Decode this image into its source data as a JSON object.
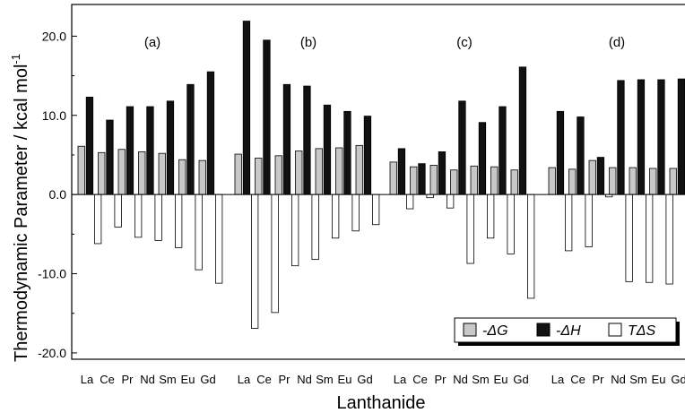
{
  "chart_data": {
    "type": "bar",
    "title": "",
    "xlabel": "Lanthanide",
    "ylabel": "Thermodynamic Parameter / kcal mol",
    "ylabel_superscript": "-1",
    "ylim": [
      -20.8,
      24.0
    ],
    "yticks": [
      -20.0,
      -10.0,
      0.0,
      10.0,
      20.0
    ],
    "ytick_labels": [
      "-20.0",
      "-10.0",
      "0.0",
      "10.0",
      "20.0"
    ],
    "categories": [
      "La",
      "Ce",
      "Pr",
      "Nd",
      "Sm",
      "Eu",
      "Gd"
    ],
    "category_labels": [
      "La",
      "Ce",
      "Pr",
      "Nd",
      "Sm",
      "Eu",
      "Gd"
    ],
    "grid": false,
    "legend_placement": "bottom-right",
    "colors": {
      "negG": "#c8c8c8",
      "negH": "#111111",
      "TdS": "#ffffff",
      "stroke": "#000000"
    },
    "series_keys": [
      "negG",
      "negH",
      "TdS"
    ],
    "legend": [
      {
        "key": "negG",
        "label": "-ΔG"
      },
      {
        "key": "negH",
        "label": "-ΔH"
      },
      {
        "key": "TdS",
        "label": "TΔS"
      }
    ],
    "panels": [
      {
        "label": "(a)",
        "negG": [
          6.1,
          5.3,
          5.7,
          5.4,
          5.2,
          4.4,
          4.3
        ],
        "negH": [
          12.3,
          9.4,
          11.1,
          11.1,
          11.8,
          13.9,
          15.5
        ],
        "TdS": [
          -6.2,
          -4.1,
          -5.4,
          -5.8,
          -6.7,
          -9.5,
          -11.2
        ]
      },
      {
        "label": "(b)",
        "negG": [
          5.1,
          4.6,
          4.9,
          5.5,
          5.8,
          5.9,
          6.2
        ],
        "negH": [
          21.9,
          19.5,
          13.9,
          13.7,
          11.3,
          10.5,
          9.9
        ],
        "TdS": [
          -16.9,
          -14.9,
          -9.0,
          -8.2,
          -5.5,
          -4.6,
          -3.8
        ]
      },
      {
        "label": "(c)",
        "negG": [
          4.1,
          3.5,
          3.7,
          3.1,
          3.6,
          3.5,
          3.1
        ],
        "negH": [
          5.8,
          3.9,
          5.4,
          11.8,
          9.1,
          11.1,
          16.1
        ],
        "TdS": [
          -1.8,
          -0.4,
          -1.7,
          -8.7,
          -5.5,
          -7.5,
          -13.1
        ]
      },
      {
        "label": "(d)",
        "negG": [
          3.4,
          3.2,
          4.3,
          3.4,
          3.4,
          3.3,
          3.3
        ],
        "negH": [
          10.5,
          9.8,
          4.7,
          14.4,
          14.5,
          14.5,
          14.6
        ],
        "TdS": [
          -7.1,
          -6.6,
          -0.3,
          -11.0,
          -11.1,
          -11.3,
          -11.3
        ]
      }
    ]
  }
}
